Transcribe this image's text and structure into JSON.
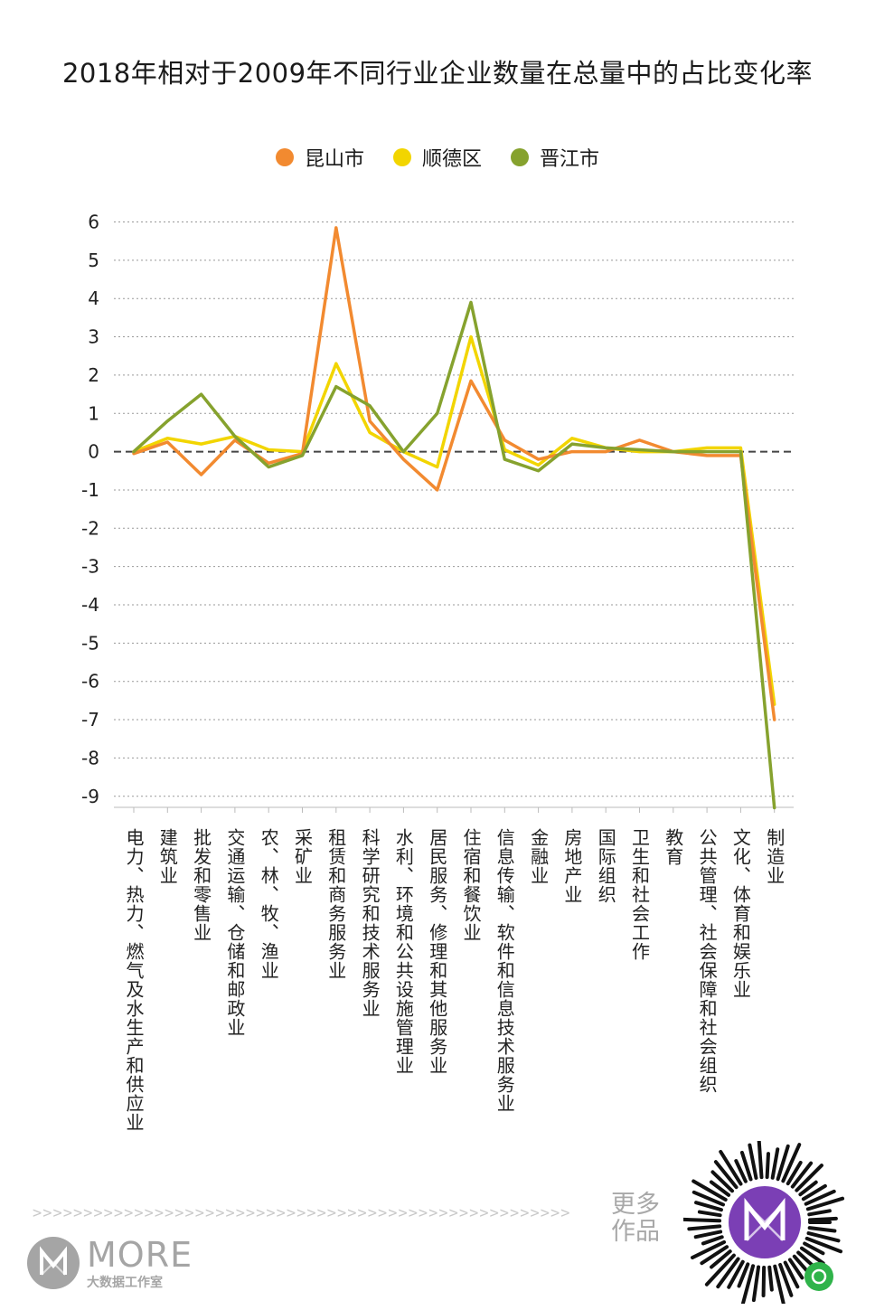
{
  "title": "2018年相对于2009年不同行业企业数量在总量中的占比变化率",
  "colors": {
    "kunshan": "#F28A30",
    "shunde": "#F2D500",
    "jinjiang": "#86A22E",
    "grid": "#999999",
    "zero_line": "#444444"
  },
  "chart_data": {
    "type": "line",
    "title": "2018年相对于2009年不同行业企业数量在总量中的占比变化率",
    "xlabel": "",
    "ylabel": "",
    "ylim": [
      -9,
      6
    ],
    "yticks": [
      "6",
      "5",
      "4",
      "3",
      "2",
      "1",
      "0",
      "-1",
      "-2",
      "-3",
      "-4",
      "-5",
      "-6",
      "-7",
      "-8",
      "-9"
    ],
    "grid": "horizontal dashed",
    "legend_position": "top",
    "categories": [
      "电力、热力、燃气及水生产和供应业",
      "建筑业",
      "批发和零售业",
      "交通运输、仓储和邮政业",
      "农、林、牧、渔业",
      "采矿业",
      "租赁和商务服务业",
      "科学研究和技术服务业",
      "水利、环境和公共设施管理业",
      "居民服务、修理和其他服务业",
      "住宿和餐饮业",
      "信息传输、软件和信息技术服务业",
      "金融业",
      "房地产业",
      "国际组织",
      "卫生和社会工作",
      "教育",
      "公共管理、社会保障和社会组织",
      "文化、体育和娱乐业",
      "制造业"
    ],
    "series": [
      {
        "name": "昆山市",
        "color": "#F28A30",
        "values": [
          -0.05,
          0.25,
          -0.6,
          0.3,
          -0.3,
          -0.05,
          5.85,
          0.8,
          -0.2,
          -1.0,
          1.85,
          0.3,
          -0.2,
          0.0,
          0.0,
          0.3,
          0.0,
          -0.1,
          -0.1,
          -7.0
        ]
      },
      {
        "name": "顺德区",
        "color": "#F2D500",
        "values": [
          0.0,
          0.35,
          0.2,
          0.4,
          0.05,
          0.0,
          2.3,
          0.5,
          0.0,
          -0.4,
          3.0,
          0.05,
          -0.35,
          0.35,
          0.1,
          0.0,
          0.0,
          0.1,
          0.1,
          -6.6
        ]
      },
      {
        "name": "晋江市",
        "color": "#86A22E",
        "values": [
          0.0,
          0.8,
          1.5,
          0.4,
          -0.4,
          -0.1,
          1.7,
          1.2,
          0.0,
          1.0,
          3.9,
          -0.2,
          -0.5,
          0.2,
          0.1,
          0.05,
          0.0,
          0.0,
          0.0,
          -9.3
        ]
      }
    ]
  },
  "footer": {
    "arrows": ">>>>>>>>>>>>>>>>>>>>>>>>>>>>>>>>>>>>>>>>>>>>>>>>>>>>>",
    "brand_name": "MORE",
    "brand_sub": "大数据工作室",
    "more_works": "更多作品"
  }
}
